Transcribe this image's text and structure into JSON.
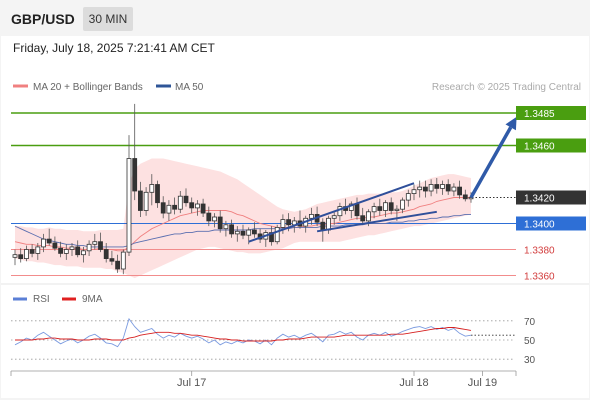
{
  "header": {
    "symbol": "GBP/USD",
    "timeframe": "30 MIN"
  },
  "timestamp": "Friday, July 18, 2025 7:21:41 AM CET",
  "legend": {
    "items": [
      {
        "label": "MA 20 + Bollinger Bands",
        "color": "#f08080"
      },
      {
        "label": "MA 50",
        "color": "#2e5597"
      }
    ],
    "credit": "Research © 2025 Trading Central"
  },
  "chart_data": {
    "type": "candlestick",
    "symbol": "GBP/USD",
    "timeframe": "30 MIN",
    "ylim": [
      1.3355,
      1.3495
    ],
    "candles": [
      [
        1.3374,
        1.338,
        1.3368,
        1.3376
      ],
      [
        1.3376,
        1.3381,
        1.337,
        1.3373
      ],
      [
        1.3373,
        1.3383,
        1.3371,
        1.338
      ],
      [
        1.338,
        1.3384,
        1.3374,
        1.3377
      ],
      [
        1.3377,
        1.3385,
        1.3372,
        1.3382
      ],
      [
        1.3382,
        1.3392,
        1.3378,
        1.3388
      ],
      [
        1.3388,
        1.3396,
        1.3383,
        1.3385
      ],
      [
        1.3385,
        1.339,
        1.3379,
        1.3381
      ],
      [
        1.3381,
        1.3386,
        1.3374,
        1.3377
      ],
      [
        1.3377,
        1.3384,
        1.3372,
        1.338
      ],
      [
        1.338,
        1.3385,
        1.3375,
        1.3382
      ],
      [
        1.3382,
        1.3387,
        1.3374,
        1.3376
      ],
      [
        1.3376,
        1.3382,
        1.337,
        1.3379
      ],
      [
        1.3379,
        1.3387,
        1.3375,
        1.3384
      ],
      [
        1.3384,
        1.3392,
        1.338,
        1.3386
      ],
      [
        1.3386,
        1.3393,
        1.3378,
        1.338
      ],
      [
        1.338,
        1.3385,
        1.337,
        1.3373
      ],
      [
        1.3373,
        1.3379,
        1.3368,
        1.3371
      ],
      [
        1.3371,
        1.3376,
        1.3362,
        1.3365
      ],
      [
        1.3365,
        1.338,
        1.3361,
        1.3378
      ],
      [
        1.3378,
        1.3468,
        1.3375,
        1.345
      ],
      [
        1.345,
        1.3492,
        1.3418,
        1.3425
      ],
      [
        1.3425,
        1.3432,
        1.3405,
        1.341
      ],
      [
        1.341,
        1.3428,
        1.3406,
        1.3424
      ],
      [
        1.3424,
        1.3438,
        1.3414,
        1.343
      ],
      [
        1.343,
        1.3433,
        1.3412,
        1.3416
      ],
      [
        1.3416,
        1.3421,
        1.3404,
        1.3408
      ],
      [
        1.3408,
        1.3418,
        1.3402,
        1.3414
      ],
      [
        1.3414,
        1.342,
        1.3407,
        1.3411
      ],
      [
        1.3411,
        1.3425,
        1.3408,
        1.3421
      ],
      [
        1.3421,
        1.3427,
        1.3413,
        1.3416
      ],
      [
        1.3416,
        1.342,
        1.3408,
        1.3412
      ],
      [
        1.3412,
        1.3418,
        1.3406,
        1.3415
      ],
      [
        1.3415,
        1.3419,
        1.3405,
        1.3408
      ],
      [
        1.3408,
        1.3413,
        1.3398,
        1.3402
      ],
      [
        1.3402,
        1.3408,
        1.3397,
        1.3405
      ],
      [
        1.3405,
        1.341,
        1.3393,
        1.3396
      ],
      [
        1.3396,
        1.3402,
        1.339,
        1.3399
      ],
      [
        1.3399,
        1.3403,
        1.3389,
        1.3392
      ],
      [
        1.3392,
        1.3398,
        1.3386,
        1.3394
      ],
      [
        1.3394,
        1.3399,
        1.3388,
        1.3391
      ],
      [
        1.3391,
        1.3397,
        1.3384,
        1.3395
      ],
      [
        1.3395,
        1.3401,
        1.3389,
        1.3392
      ],
      [
        1.3392,
        1.3396,
        1.3385,
        1.3388
      ],
      [
        1.3388,
        1.3395,
        1.3382,
        1.3393
      ],
      [
        1.3393,
        1.3398,
        1.3383,
        1.3386
      ],
      [
        1.3386,
        1.3399,
        1.3384,
        1.3397
      ],
      [
        1.3397,
        1.3407,
        1.3392,
        1.3403
      ],
      [
        1.3403,
        1.3408,
        1.3394,
        1.3399
      ],
      [
        1.3399,
        1.3405,
        1.3393,
        1.3402
      ],
      [
        1.3402,
        1.341,
        1.3396,
        1.3398
      ],
      [
        1.3398,
        1.3406,
        1.3393,
        1.3404
      ],
      [
        1.3404,
        1.3412,
        1.3399,
        1.3407
      ],
      [
        1.3407,
        1.3413,
        1.3398,
        1.3401
      ],
      [
        1.3401,
        1.3404,
        1.3386,
        1.3395
      ],
      [
        1.3395,
        1.3406,
        1.3392,
        1.3404
      ],
      [
        1.3404,
        1.341,
        1.3399,
        1.3406
      ],
      [
        1.3406,
        1.3416,
        1.3402,
        1.3413
      ],
      [
        1.3413,
        1.3419,
        1.3407,
        1.341
      ],
      [
        1.341,
        1.3417,
        1.3404,
        1.3415
      ],
      [
        1.3415,
        1.342,
        1.3403,
        1.3406
      ],
      [
        1.3406,
        1.3412,
        1.3399,
        1.3402
      ],
      [
        1.3402,
        1.3411,
        1.3398,
        1.3409
      ],
      [
        1.3409,
        1.3416,
        1.3404,
        1.3413
      ],
      [
        1.3413,
        1.3419,
        1.3406,
        1.341
      ],
      [
        1.341,
        1.3418,
        1.3405,
        1.3416
      ],
      [
        1.3416,
        1.342,
        1.3407,
        1.341
      ],
      [
        1.341,
        1.3414,
        1.3402,
        1.3411
      ],
      [
        1.3411,
        1.342,
        1.3408,
        1.3418
      ],
      [
        1.3418,
        1.3426,
        1.3413,
        1.3423
      ],
      [
        1.3423,
        1.343,
        1.3418,
        1.3426
      ],
      [
        1.3426,
        1.3433,
        1.342,
        1.3428
      ],
      [
        1.3428,
        1.3433,
        1.342,
        1.3425
      ],
      [
        1.3425,
        1.3434,
        1.3421,
        1.343
      ],
      [
        1.343,
        1.3435,
        1.3423,
        1.3427
      ],
      [
        1.3427,
        1.3433,
        1.3422,
        1.343
      ],
      [
        1.343,
        1.3434,
        1.3422,
        1.3425
      ],
      [
        1.3425,
        1.3431,
        1.3421,
        1.3428
      ],
      [
        1.3428,
        1.3433,
        1.3419,
        1.3422
      ],
      [
        1.3422,
        1.3426,
        1.3417,
        1.3419
      ],
      [
        1.3419,
        1.3424,
        1.3416,
        1.342
      ]
    ],
    "ma20_bollinger": {
      "middle": [
        1.3386,
        1.3385,
        1.3384,
        1.3384,
        1.3383,
        1.3383,
        1.3383,
        1.3382,
        1.3382,
        1.3381,
        1.3381,
        1.3381,
        1.338,
        1.338,
        1.338,
        1.3381,
        1.338,
        1.338,
        1.3379,
        1.3379,
        1.3382,
        1.3386,
        1.339,
        1.3393,
        1.3396,
        1.3398,
        1.34,
        1.3402,
        1.3404,
        1.3406,
        1.3407,
        1.3408,
        1.3409,
        1.341,
        1.341,
        1.341,
        1.341,
        1.341,
        1.3409,
        1.3407,
        1.3406,
        1.3404,
        1.3402,
        1.34,
        1.3399,
        1.3398,
        1.3397,
        1.3397,
        1.3397,
        1.3397,
        1.3397,
        1.3398,
        1.3398,
        1.3399,
        1.3399,
        1.34,
        1.34,
        1.3401,
        1.3402,
        1.3403,
        1.3404,
        1.3404,
        1.3405,
        1.3405,
        1.3406,
        1.3407,
        1.3408,
        1.3408,
        1.3409,
        1.341,
        1.3411,
        1.3413,
        1.3414,
        1.3415,
        1.3417,
        1.3418,
        1.3419,
        1.342,
        1.342,
        1.342,
        1.342
      ],
      "upper": [
        1.3398,
        1.3398,
        1.3397,
        1.3397,
        1.3396,
        1.3396,
        1.3397,
        1.3396,
        1.3396,
        1.3395,
        1.3395,
        1.3395,
        1.3394,
        1.3394,
        1.3394,
        1.3395,
        1.3395,
        1.3395,
        1.3395,
        1.3396,
        1.343,
        1.3442,
        1.3446,
        1.3448,
        1.345,
        1.345,
        1.345,
        1.3449,
        1.3448,
        1.3447,
        1.3446,
        1.3445,
        1.3444,
        1.3443,
        1.3442,
        1.3441,
        1.344,
        1.3438,
        1.3436,
        1.3434,
        1.3431,
        1.3428,
        1.3425,
        1.3422,
        1.3419,
        1.3416,
        1.3413,
        1.3411,
        1.341,
        1.3409,
        1.341,
        1.3411,
        1.3413,
        1.3415,
        1.3416,
        1.3417,
        1.3418,
        1.3419,
        1.342,
        1.3421,
        1.3422,
        1.3422,
        1.3423,
        1.3423,
        1.3423,
        1.3423,
        1.3424,
        1.3424,
        1.3425,
        1.3427,
        1.3429,
        1.3431,
        1.3433,
        1.3435,
        1.3436,
        1.3437,
        1.3438,
        1.3438,
        1.3437,
        1.3436,
        1.3435
      ],
      "lower": [
        1.3373,
        1.3372,
        1.3371,
        1.3371,
        1.337,
        1.337,
        1.3369,
        1.3368,
        1.3368,
        1.3367,
        1.3367,
        1.3367,
        1.3366,
        1.3366,
        1.3366,
        1.3366,
        1.3365,
        1.3365,
        1.3363,
        1.3362,
        1.336,
        1.3358,
        1.336,
        1.3362,
        1.3364,
        1.3366,
        1.3368,
        1.337,
        1.3372,
        1.3374,
        1.3376,
        1.3378,
        1.338,
        1.3381,
        1.3382,
        1.3382,
        1.3381,
        1.338,
        1.3379,
        1.3378,
        1.3378,
        1.3377,
        1.3377,
        1.3377,
        1.3378,
        1.3379,
        1.338,
        1.3381,
        1.3383,
        1.3385,
        1.3386,
        1.3386,
        1.3386,
        1.3386,
        1.3386,
        1.3386,
        1.3386,
        1.3386,
        1.3387,
        1.3388,
        1.3389,
        1.339,
        1.3391,
        1.3391,
        1.3392,
        1.3393,
        1.3394,
        1.3395,
        1.3396,
        1.3397,
        1.3398,
        1.3398,
        1.3399,
        1.34,
        1.3401,
        1.3402,
        1.3403,
        1.3404,
        1.3405,
        1.3406,
        1.3407
      ]
    },
    "ma50": [
      1.3398,
      1.3396,
      1.3394,
      1.3392,
      1.339,
      1.3388,
      1.3387,
      1.3386,
      1.3385,
      1.3384,
      1.3384,
      1.3383,
      1.3383,
      1.3382,
      1.3382,
      1.3382,
      1.3382,
      1.3382,
      1.3382,
      1.3382,
      1.3383,
      1.3385,
      1.3386,
      1.3387,
      1.3388,
      1.3389,
      1.339,
      1.3391,
      1.3392,
      1.3392,
      1.3393,
      1.3393,
      1.3394,
      1.3394,
      1.3394,
      1.3395,
      1.3395,
      1.3395,
      1.3395,
      1.3395,
      1.3395,
      1.3395,
      1.3396,
      1.3396,
      1.3396,
      1.3396,
      1.3396,
      1.3396,
      1.3396,
      1.3397,
      1.3397,
      1.3397,
      1.3397,
      1.3397,
      1.3398,
      1.3398,
      1.3398,
      1.3398,
      1.3399,
      1.3399,
      1.3399,
      1.3399,
      1.34,
      1.34,
      1.34,
      1.34,
      1.3401,
      1.3401,
      1.3401,
      1.3402,
      1.3402,
      1.3403,
      1.3403,
      1.3404,
      1.3404,
      1.3405,
      1.3405,
      1.3406,
      1.3406,
      1.3407,
      1.3407
    ],
    "levels": [
      {
        "value": 1.3485,
        "label": "1.3485",
        "kind": "resistance"
      },
      {
        "value": 1.346,
        "label": "1.3460",
        "kind": "resistance"
      },
      {
        "value": 1.342,
        "label": "1.3420",
        "kind": "last"
      },
      {
        "value": 1.34,
        "label": "1.3400",
        "kind": "pivot"
      },
      {
        "value": 1.338,
        "label": "1.3380",
        "kind": "support"
      },
      {
        "value": 1.336,
        "label": "1.3360",
        "kind": "support"
      }
    ],
    "channel": {
      "upper": [
        [
          41,
          1.3386
        ],
        [
          70,
          1.3431
        ]
      ],
      "lower": [
        [
          53,
          1.3394
        ],
        [
          74,
          1.3409
        ]
      ]
    },
    "arrow": {
      "from": [
        80,
        1.342
      ],
      "to": [
        88,
        1.3482
      ]
    },
    "x_labels": [
      {
        "index": 31,
        "label": "Jul 17"
      },
      {
        "index": 70,
        "label": "Jul 18"
      },
      {
        "index": 82,
        "label": "Jul 19"
      }
    ],
    "rsi": {
      "label": "RSI",
      "signal_label": "9MA",
      "ylim": [
        25,
        75
      ],
      "ticks": [
        70,
        50,
        30
      ],
      "rsi_values": [
        45,
        48,
        52,
        50,
        55,
        58,
        54,
        50,
        46,
        49,
        51,
        47,
        50,
        54,
        56,
        52,
        47,
        46,
        43,
        52,
        72,
        64,
        58,
        60,
        62,
        56,
        52,
        55,
        53,
        57,
        54,
        52,
        54,
        51,
        47,
        50,
        45,
        48,
        46,
        49,
        47,
        50,
        49,
        46,
        50,
        45,
        52,
        56,
        53,
        55,
        52,
        55,
        57,
        53,
        48,
        55,
        56,
        59,
        56,
        58,
        53,
        50,
        55,
        57,
        55,
        58,
        54,
        56,
        59,
        61,
        63,
        64,
        62,
        64,
        61,
        63,
        60,
        62,
        57,
        54,
        55
      ],
      "ma_values": [
        50,
        50,
        50,
        50,
        51,
        51,
        52,
        52,
        51,
        51,
        51,
        50,
        50,
        50,
        51,
        51,
        51,
        50,
        50,
        50,
        52,
        53,
        55,
        56,
        57,
        58,
        58,
        58,
        57,
        57,
        56,
        55,
        55,
        54,
        53,
        52,
        51,
        51,
        50,
        50,
        49,
        49,
        49,
        49,
        49,
        49,
        50,
        50,
        51,
        51,
        51,
        52,
        53,
        53,
        53,
        53,
        53,
        54,
        55,
        55,
        55,
        55,
        55,
        55,
        55,
        55,
        56,
        56,
        56,
        57,
        58,
        59,
        60,
        61,
        62,
        62,
        63,
        63,
        62,
        61,
        60
      ]
    },
    "grid": false,
    "legend_position": "top-left"
  }
}
